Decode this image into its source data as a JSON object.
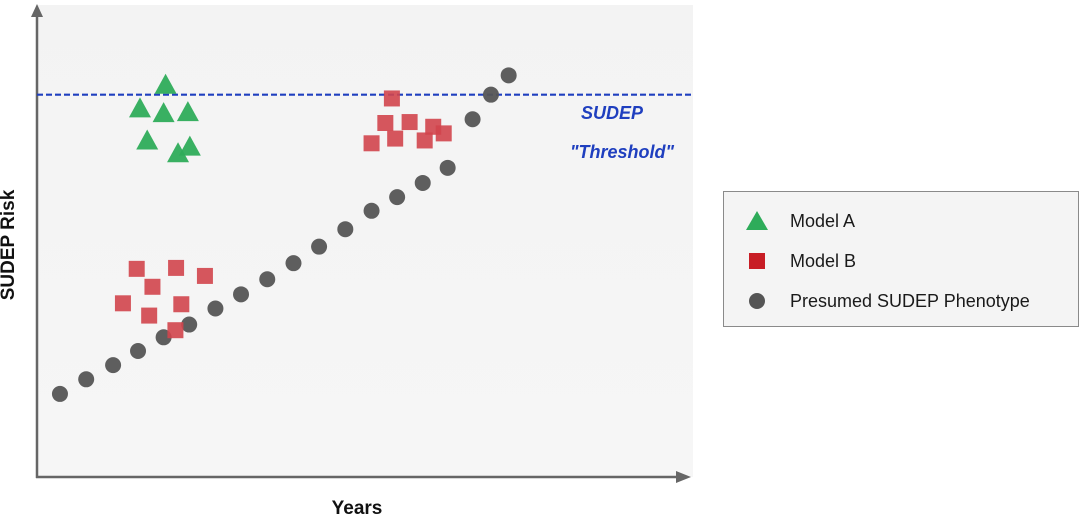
{
  "chart_data": {
    "type": "scatter",
    "xlabel": "Years",
    "ylabel": "SUDEP Risk",
    "xlim": [
      0,
      100
    ],
    "ylim": [
      0,
      100
    ],
    "ticks_shown": false,
    "grid": false,
    "legend_position": "right",
    "threshold": {
      "y": 81,
      "label_line1": "SUDEP",
      "label_line2": "\"Threshold\"",
      "color": "#1f3fbf",
      "style": "dashed"
    },
    "series": [
      {
        "name": "Model A",
        "marker": "triangle",
        "color": "#2eac5a",
        "points": [
          {
            "x": 19.6,
            "y": 83.1
          },
          {
            "x": 15.7,
            "y": 78.1
          },
          {
            "x": 19.3,
            "y": 77.1
          },
          {
            "x": 23.0,
            "y": 77.3
          },
          {
            "x": 16.8,
            "y": 71.3
          },
          {
            "x": 23.3,
            "y": 70.0
          },
          {
            "x": 21.5,
            "y": 68.6
          }
        ]
      },
      {
        "name": "Model B",
        "marker": "square",
        "color": "#d2454d",
        "points": [
          {
            "x": 15.2,
            "y": 44.1
          },
          {
            "x": 21.2,
            "y": 44.3
          },
          {
            "x": 25.6,
            "y": 42.6
          },
          {
            "x": 17.6,
            "y": 40.3
          },
          {
            "x": 13.1,
            "y": 36.8
          },
          {
            "x": 22.0,
            "y": 36.6
          },
          {
            "x": 17.1,
            "y": 34.2
          },
          {
            "x": 21.1,
            "y": 31.1
          },
          {
            "x": 54.1,
            "y": 80.2
          },
          {
            "x": 53.1,
            "y": 75.0
          },
          {
            "x": 56.8,
            "y": 75.2
          },
          {
            "x": 60.4,
            "y": 74.2
          },
          {
            "x": 59.1,
            "y": 71.3
          },
          {
            "x": 51.0,
            "y": 70.7
          },
          {
            "x": 54.6,
            "y": 71.7
          },
          {
            "x": 62.0,
            "y": 72.8
          }
        ]
      },
      {
        "name": "Presumed SUDEP Phenotype",
        "marker": "circle",
        "color": "#555555",
        "points": [
          {
            "x": 3.5,
            "y": 17.6
          },
          {
            "x": 7.5,
            "y": 20.7
          },
          {
            "x": 11.6,
            "y": 23.7
          },
          {
            "x": 15.4,
            "y": 26.7
          },
          {
            "x": 19.3,
            "y": 29.6
          },
          {
            "x": 23.2,
            "y": 32.3
          },
          {
            "x": 27.2,
            "y": 35.7
          },
          {
            "x": 31.1,
            "y": 38.7
          },
          {
            "x": 35.1,
            "y": 41.9
          },
          {
            "x": 39.1,
            "y": 45.3
          },
          {
            "x": 43.0,
            "y": 48.8
          },
          {
            "x": 47.0,
            "y": 52.5
          },
          {
            "x": 51.0,
            "y": 56.4
          },
          {
            "x": 54.9,
            "y": 59.3
          },
          {
            "x": 58.8,
            "y": 62.3
          },
          {
            "x": 62.6,
            "y": 65.5
          },
          {
            "x": 66.4,
            "y": 75.8
          },
          {
            "x": 69.2,
            "y": 81.0
          },
          {
            "x": 71.9,
            "y": 85.1
          }
        ]
      }
    ]
  },
  "legend": {
    "items": [
      {
        "label": "Model A",
        "marker": "triangle",
        "color": "#2eac5a"
      },
      {
        "label": "Model B",
        "marker": "square",
        "color": "#c81d25"
      },
      {
        "label": "Presumed SUDEP Phenotype",
        "marker": "circle",
        "color": "#555555"
      }
    ]
  }
}
